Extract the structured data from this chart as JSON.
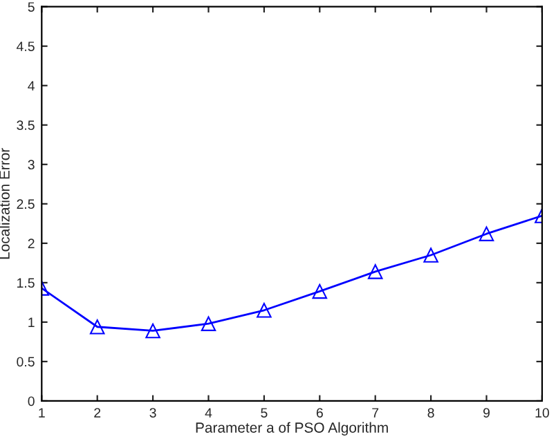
{
  "chart_data": {
    "type": "line",
    "xlabel": "Parameter a of PSO Algorithm",
    "ylabel": "Localization Error",
    "x": [
      1,
      2,
      3,
      4,
      5,
      6,
      7,
      8,
      9,
      10
    ],
    "series": [
      {
        "color": "#0000ff",
        "values": [
          1.43,
          0.94,
          0.89,
          0.98,
          1.15,
          1.39,
          1.64,
          1.85,
          2.12,
          2.35
        ]
      }
    ],
    "marker": "triangle",
    "line_style": "solid",
    "xlim": [
      1,
      10
    ],
    "xticks": [
      1,
      2,
      3,
      4,
      5,
      6,
      7,
      8,
      9,
      10
    ],
    "ylim": [
      0,
      5
    ],
    "yticks": [
      0,
      0.5,
      1,
      1.5,
      2,
      2.5,
      3,
      3.5,
      4,
      4.5,
      5
    ],
    "grid": false,
    "legend": false
  }
}
